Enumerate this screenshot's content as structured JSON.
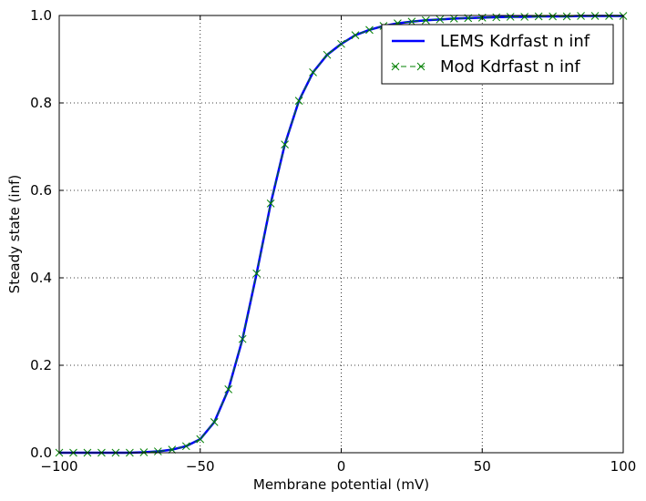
{
  "chart_data": {
    "type": "line",
    "title": "",
    "xlabel": "Membrane potential (mV)",
    "ylabel": "Steady state (inf)",
    "xlim": [
      -100,
      100
    ],
    "ylim": [
      0.0,
      1.0
    ],
    "grid": true,
    "legend_position": "top-right",
    "x_ticks": [
      -100,
      -50,
      0,
      50,
      100
    ],
    "x_tick_labels": [
      "−100",
      "−50",
      "0",
      "50",
      "100"
    ],
    "y_ticks": [
      0.0,
      0.2,
      0.4,
      0.6,
      0.8,
      1.0
    ],
    "y_tick_labels": [
      "0.0",
      "0.2",
      "0.4",
      "0.6",
      "0.8",
      "1.0"
    ],
    "series": [
      {
        "name": "LEMS Kdrfast n inf",
        "color": "#0000ff",
        "style": "solid-line",
        "x": [
          -100,
          -95,
          -90,
          -85,
          -80,
          -75,
          -70,
          -65,
          -60,
          -55,
          -50,
          -45,
          -40,
          -35,
          -30,
          -25,
          -20,
          -15,
          -10,
          -5,
          0,
          5,
          10,
          15,
          20,
          25,
          30,
          35,
          40,
          45,
          50,
          55,
          60,
          65,
          70,
          75,
          80,
          85,
          90,
          95,
          100
        ],
        "y": [
          0.0,
          0.0,
          0.0,
          0.0,
          0.0,
          0.0,
          0.001,
          0.003,
          0.007,
          0.015,
          0.031,
          0.07,
          0.145,
          0.26,
          0.41,
          0.57,
          0.705,
          0.805,
          0.87,
          0.91,
          0.935,
          0.955,
          0.967,
          0.976,
          0.982,
          0.986,
          0.989,
          0.991,
          0.993,
          0.994,
          0.995,
          0.996,
          0.997,
          0.997,
          0.998,
          0.998,
          0.998,
          0.999,
          0.999,
          0.999,
          0.999
        ]
      },
      {
        "name": "Mod Kdrfast n inf",
        "color": "#008000",
        "style": "dashed-line-x-markers",
        "x": [
          -100,
          -95,
          -90,
          -85,
          -80,
          -75,
          -70,
          -65,
          -60,
          -55,
          -50,
          -45,
          -40,
          -35,
          -30,
          -25,
          -20,
          -15,
          -10,
          -5,
          0,
          5,
          10,
          15,
          20,
          25,
          30,
          35,
          40,
          45,
          50,
          55,
          60,
          65,
          70,
          75,
          80,
          85,
          90,
          95,
          100
        ],
        "y": [
          0.0,
          0.0,
          0.0,
          0.0,
          0.0,
          0.0,
          0.001,
          0.003,
          0.007,
          0.015,
          0.031,
          0.07,
          0.145,
          0.26,
          0.41,
          0.57,
          0.705,
          0.805,
          0.87,
          0.91,
          0.935,
          0.955,
          0.967,
          0.976,
          0.982,
          0.986,
          0.989,
          0.991,
          0.993,
          0.994,
          0.995,
          0.996,
          0.997,
          0.997,
          0.998,
          0.998,
          0.998,
          0.999,
          0.999,
          0.999,
          0.999
        ]
      }
    ]
  }
}
